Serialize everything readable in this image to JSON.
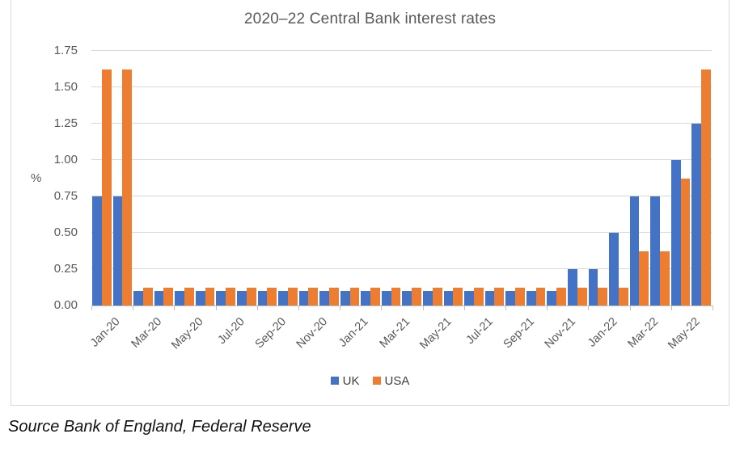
{
  "chart_data": {
    "type": "bar",
    "title": "2020–22 Central Bank interest rates",
    "xlabel": "",
    "ylabel": "%",
    "ylim": [
      0,
      1.75
    ],
    "grid": true,
    "yticks": [
      {
        "value": 0.0,
        "label": "0.00"
      },
      {
        "value": 0.25,
        "label": "0.25"
      },
      {
        "value": 0.5,
        "label": "0.50"
      },
      {
        "value": 0.75,
        "label": "0.75"
      },
      {
        "value": 1.0,
        "label": "1.00"
      },
      {
        "value": 1.25,
        "label": "1.25"
      },
      {
        "value": 1.5,
        "label": "1.50"
      },
      {
        "value": 1.75,
        "label": "1.75"
      }
    ],
    "categories": [
      "Jan-20",
      "Feb-20",
      "Mar-20",
      "Apr-20",
      "May-20",
      "Jun-20",
      "Jul-20",
      "Aug-20",
      "Sep-20",
      "Oct-20",
      "Nov-20",
      "Dec-20",
      "Jan-21",
      "Feb-21",
      "Mar-21",
      "Apr-21",
      "May-21",
      "Jun-21",
      "Jul-21",
      "Aug-21",
      "Sep-21",
      "Oct-21",
      "Nov-21",
      "Dec-21",
      "Jan-22",
      "Feb-22",
      "Mar-22",
      "Apr-22",
      "May-22",
      "Jun-22"
    ],
    "x_tick_labels": [
      "Jan-20",
      "Mar-20",
      "May-20",
      "Jul-20",
      "Sep-20",
      "Nov-20",
      "Jan-21",
      "Mar-21",
      "May-21",
      "Jul-21",
      "Sep-21",
      "Nov-21",
      "Jan-22",
      "Mar-22",
      "May-22"
    ],
    "x_label_step": 2,
    "series": [
      {
        "name": "UK",
        "color": "#4472C4",
        "values": [
          0.75,
          0.75,
          0.1,
          0.1,
          0.1,
          0.1,
          0.1,
          0.1,
          0.1,
          0.1,
          0.1,
          0.1,
          0.1,
          0.1,
          0.1,
          0.1,
          0.1,
          0.1,
          0.1,
          0.1,
          0.1,
          0.1,
          0.1,
          0.25,
          0.25,
          0.5,
          0.75,
          0.75,
          1.0,
          1.25
        ]
      },
      {
        "name": "USA",
        "color": "#ED7D31",
        "values": [
          1.625,
          1.625,
          0.125,
          0.125,
          0.125,
          0.125,
          0.125,
          0.125,
          0.125,
          0.125,
          0.125,
          0.125,
          0.125,
          0.125,
          0.125,
          0.125,
          0.125,
          0.125,
          0.125,
          0.125,
          0.125,
          0.125,
          0.125,
          0.125,
          0.125,
          0.125,
          0.375,
          0.375,
          0.875,
          1.625
        ]
      }
    ],
    "legend_position": "bottom"
  },
  "colors": {
    "gridline": "#d9d9d9",
    "axis": "#bfbfbf",
    "chart_text": "#595959",
    "chart_border": "#d9d9d9"
  },
  "source_note": "Source Bank of England, Federal Reserve"
}
